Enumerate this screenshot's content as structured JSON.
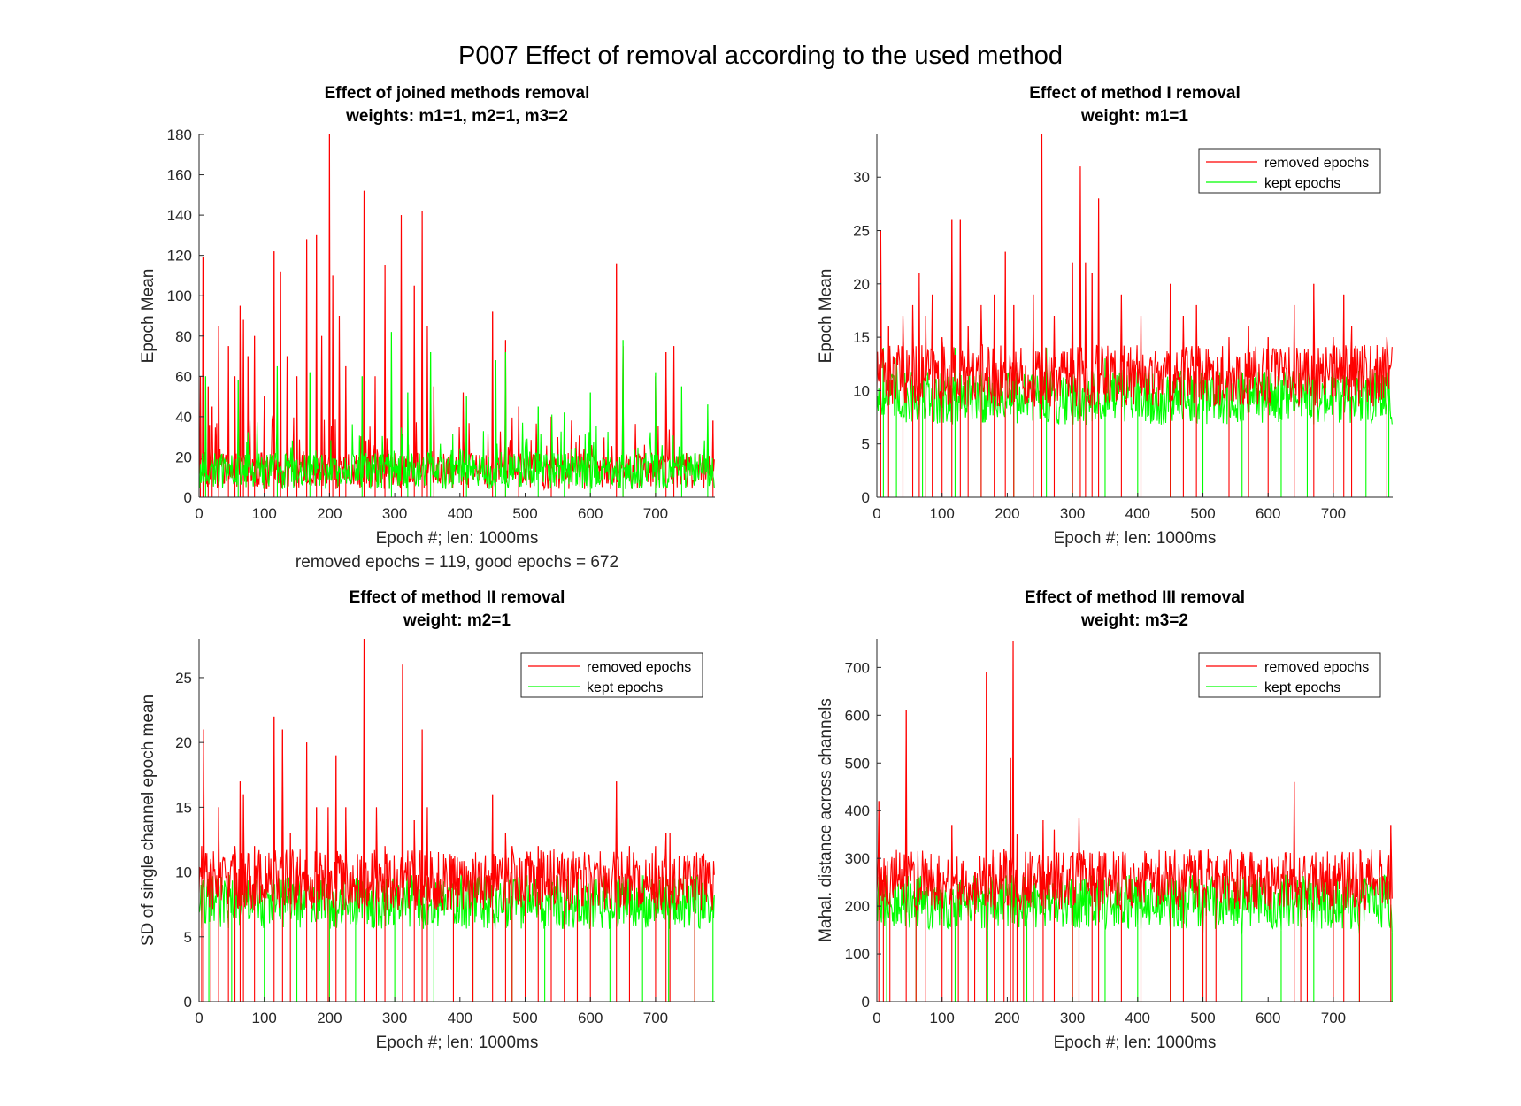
{
  "figure": {
    "title": "P007 Effect of removal according to the used method"
  },
  "colors": {
    "removed": "#ff0000",
    "kept": "#00ff00",
    "axis": "#262626",
    "text": "#000000"
  },
  "chart_data": [
    {
      "type": "line",
      "title": "Effect of joined methods removal",
      "subtitle": "weights: m1=1, m2=1, m3=2",
      "xlabel": "Epoch #; len: 1000ms",
      "footnote": "removed epochs = 119, good epochs = 672",
      "ylabel": "Epoch Mean",
      "xlim": [
        0,
        791
      ],
      "ylim": [
        0,
        180
      ],
      "xticks": [
        0,
        100,
        200,
        300,
        400,
        500,
        600,
        700
      ],
      "yticks": [
        0,
        20,
        40,
        60,
        80,
        100,
        120,
        140,
        160,
        180
      ],
      "legend": null,
      "series": [
        {
          "name": "removed epochs",
          "color": "#ff0000",
          "peaks": [
            [
              2,
              60
            ],
            [
              6,
              119
            ],
            [
              14,
              55
            ],
            [
              20,
              45
            ],
            [
              30,
              85
            ],
            [
              45,
              75
            ],
            [
              55,
              60
            ],
            [
              63,
              95
            ],
            [
              68,
              88
            ],
            [
              75,
              70
            ],
            [
              85,
              80
            ],
            [
              100,
              50
            ],
            [
              115,
              122
            ],
            [
              125,
              112
            ],
            [
              135,
              70
            ],
            [
              150,
              60
            ],
            [
              165,
              128
            ],
            [
              180,
              130
            ],
            [
              188,
              80
            ],
            [
              200,
              180
            ],
            [
              205,
              110
            ],
            [
              215,
              90
            ],
            [
              225,
              65
            ],
            [
              253,
              152
            ],
            [
              270,
              60
            ],
            [
              285,
              115
            ],
            [
              310,
              140
            ],
            [
              330,
              105
            ],
            [
              342,
              142
            ],
            [
              350,
              85
            ],
            [
              360,
              55
            ],
            [
              405,
              52
            ],
            [
              450,
              92
            ],
            [
              470,
              78
            ],
            [
              490,
              45
            ],
            [
              540,
              40
            ],
            [
              640,
              116
            ],
            [
              650,
              75
            ],
            [
              700,
              60
            ],
            [
              716,
              72
            ],
            [
              728,
              75
            ],
            [
              788,
              38
            ]
          ]
        },
        {
          "name": "kept epochs",
          "color": "#00ff00",
          "peaks": [
            [
              10,
              60
            ],
            [
              60,
              58
            ],
            [
              120,
              65
            ],
            [
              170,
              62
            ],
            [
              250,
              60
            ],
            [
              295,
              82
            ],
            [
              320,
              52
            ],
            [
              355,
              72
            ],
            [
              410,
              50
            ],
            [
              455,
              68
            ],
            [
              470,
              72
            ],
            [
              520,
              45
            ],
            [
              560,
              42
            ],
            [
              600,
              52
            ],
            [
              650,
              78
            ],
            [
              700,
              62
            ],
            [
              740,
              55
            ],
            [
              780,
              46
            ]
          ]
        }
      ]
    },
    {
      "type": "line",
      "title": "Effect of method I removal",
      "subtitle": "weight: m1=1",
      "xlabel": "Epoch #; len: 1000ms",
      "ylabel": "Epoch Mean",
      "xlim": [
        0,
        791
      ],
      "ylim": [
        0,
        34
      ],
      "xticks": [
        0,
        100,
        200,
        300,
        400,
        500,
        600,
        700
      ],
      "yticks": [
        0,
        5,
        10,
        15,
        20,
        25,
        30
      ],
      "legend": "top-right",
      "series": [
        {
          "name": "removed epochs",
          "color": "#ff0000",
          "peaks": [
            [
              6,
              25
            ],
            [
              18,
              16
            ],
            [
              40,
              17
            ],
            [
              55,
              18
            ],
            [
              65,
              21
            ],
            [
              75,
              17
            ],
            [
              85,
              19
            ],
            [
              100,
              15
            ],
            [
              115,
              26
            ],
            [
              128,
              26
            ],
            [
              140,
              16
            ],
            [
              160,
              18
            ],
            [
              180,
              19
            ],
            [
              197,
              23
            ],
            [
              210,
              18
            ],
            [
              240,
              19
            ],
            [
              253,
              34
            ],
            [
              272,
              17
            ],
            [
              300,
              22
            ],
            [
              312,
              31
            ],
            [
              320,
              22
            ],
            [
              330,
              21
            ],
            [
              340,
              28
            ],
            [
              375,
              19
            ],
            [
              405,
              17
            ],
            [
              450,
              20
            ],
            [
              470,
              17
            ],
            [
              490,
              18
            ],
            [
              540,
              15
            ],
            [
              570,
              16
            ],
            [
              600,
              15
            ],
            [
              640,
              18
            ],
            [
              670,
              20
            ],
            [
              700,
              15
            ],
            [
              716,
              19
            ],
            [
              728,
              16
            ],
            [
              782,
              15
            ]
          ]
        },
        {
          "name": "kept epochs",
          "color": "#00ff00",
          "peaks": [
            [
              10,
              14
            ],
            [
              30,
              13
            ],
            [
              70,
              12
            ],
            [
              120,
              14
            ],
            [
              160,
              12
            ],
            [
              210,
              13
            ],
            [
              260,
              14
            ],
            [
              300,
              13
            ],
            [
              350,
              13
            ],
            [
              400,
              12
            ],
            [
              450,
              12
            ],
            [
              500,
              11
            ],
            [
              560,
              11
            ],
            [
              620,
              11
            ],
            [
              660,
              12
            ],
            [
              700,
              12
            ],
            [
              750,
              11
            ],
            [
              785,
              12
            ]
          ]
        }
      ]
    },
    {
      "type": "line",
      "title": "Effect of method II removal",
      "subtitle": "weight: m2=1",
      "xlabel": "Epoch #; len: 1000ms",
      "ylabel": "SD of single channel epoch mean",
      "xlim": [
        0,
        791
      ],
      "ylim": [
        0,
        28
      ],
      "xticks": [
        0,
        100,
        200,
        300,
        400,
        500,
        600,
        700
      ],
      "yticks": [
        0,
        5,
        10,
        15,
        20,
        25
      ],
      "legend": "top-right",
      "series": [
        {
          "name": "removed epochs",
          "color": "#ff0000",
          "peaks": [
            [
              4,
              12
            ],
            [
              7,
              21
            ],
            [
              18,
              11
            ],
            [
              30,
              15
            ],
            [
              45,
              10
            ],
            [
              55,
              12
            ],
            [
              63,
              17
            ],
            [
              68,
              16
            ],
            [
              85,
              12
            ],
            [
              115,
              22
            ],
            [
              128,
              21
            ],
            [
              140,
              13
            ],
            [
              165,
              20
            ],
            [
              180,
              15
            ],
            [
              198,
              15
            ],
            [
              210,
              19
            ],
            [
              225,
              15
            ],
            [
              253,
              28
            ],
            [
              272,
              15
            ],
            [
              285,
              12
            ],
            [
              312,
              26
            ],
            [
              330,
              14
            ],
            [
              342,
              21
            ],
            [
              350,
              15
            ],
            [
              390,
              11
            ],
            [
              420,
              11
            ],
            [
              450,
              16
            ],
            [
              470,
              13
            ],
            [
              480,
              12
            ],
            [
              500,
              11
            ],
            [
              520,
              12
            ],
            [
              540,
              10
            ],
            [
              560,
              11
            ],
            [
              580,
              10
            ],
            [
              600,
              10
            ],
            [
              640,
              17
            ],
            [
              660,
              12
            ],
            [
              700,
              12
            ],
            [
              716,
              13
            ],
            [
              722,
              13
            ],
            [
              760,
              10
            ]
          ]
        },
        {
          "name": "kept epochs",
          "color": "#00ff00",
          "peaks": [
            [
              15,
              8
            ],
            [
              50,
              8
            ],
            [
              100,
              8
            ],
            [
              150,
              8
            ],
            [
              200,
              9
            ],
            [
              240,
              9
            ],
            [
              300,
              8
            ],
            [
              360,
              8
            ],
            [
              420,
              7
            ],
            [
              480,
              7
            ],
            [
              530,
              7
            ],
            [
              580,
              7
            ],
            [
              630,
              7
            ],
            [
              680,
              8
            ],
            [
              720,
              9
            ],
            [
              760,
              7
            ],
            [
              788,
              8
            ]
          ]
        }
      ]
    },
    {
      "type": "line",
      "title": "Effect of method III removal",
      "subtitle": "weight: m3=2",
      "xlabel": "Epoch #; len: 1000ms",
      "ylabel": "Mahal. distance across channels",
      "xlim": [
        0,
        791
      ],
      "ylim": [
        0,
        760
      ],
      "xticks": [
        0,
        100,
        200,
        300,
        400,
        500,
        600,
        700
      ],
      "yticks": [
        0,
        100,
        200,
        300,
        400,
        500,
        600,
        700
      ],
      "legend": "top-right",
      "series": [
        {
          "name": "removed epochs",
          "color": "#ff0000",
          "peaks": [
            [
              3,
              420
            ],
            [
              10,
              250
            ],
            [
              20,
              210
            ],
            [
              45,
              610
            ],
            [
              60,
              200
            ],
            [
              75,
              210
            ],
            [
              100,
              200
            ],
            [
              115,
              370
            ],
            [
              125,
              230
            ],
            [
              140,
              220
            ],
            [
              150,
              270
            ],
            [
              168,
              690
            ],
            [
              180,
              200
            ],
            [
              195,
              320
            ],
            [
              205,
              510
            ],
            [
              209,
              755
            ],
            [
              215,
              350
            ],
            [
              225,
              270
            ],
            [
              240,
              250
            ],
            [
              255,
              380
            ],
            [
              272,
              360
            ],
            [
              300,
              310
            ],
            [
              310,
              385
            ],
            [
              330,
              310
            ],
            [
              340,
              270
            ],
            [
              375,
              210
            ],
            [
              405,
              200
            ],
            [
              450,
              280
            ],
            [
              470,
              170
            ],
            [
              500,
              200
            ],
            [
              505,
              205
            ],
            [
              520,
              295
            ],
            [
              640,
              460
            ],
            [
              650,
              250
            ],
            [
              660,
              200
            ],
            [
              700,
              200
            ],
            [
              716,
              190
            ],
            [
              740,
              160
            ],
            [
              788,
              370
            ]
          ]
        },
        {
          "name": "kept epochs",
          "color": "#00ff00",
          "peaks": [
            [
              15,
              170
            ],
            [
              60,
              160
            ],
            [
              120,
              155
            ],
            [
              170,
              150
            ],
            [
              230,
              170
            ],
            [
              300,
              160
            ],
            [
              350,
              150
            ],
            [
              400,
              160
            ],
            [
              450,
              150
            ],
            [
              500,
              140
            ],
            [
              560,
              140
            ],
            [
              620,
              150
            ],
            [
              670,
              160
            ],
            [
              700,
              150
            ],
            [
              740,
              140
            ],
            [
              790,
              145
            ]
          ]
        }
      ]
    }
  ]
}
